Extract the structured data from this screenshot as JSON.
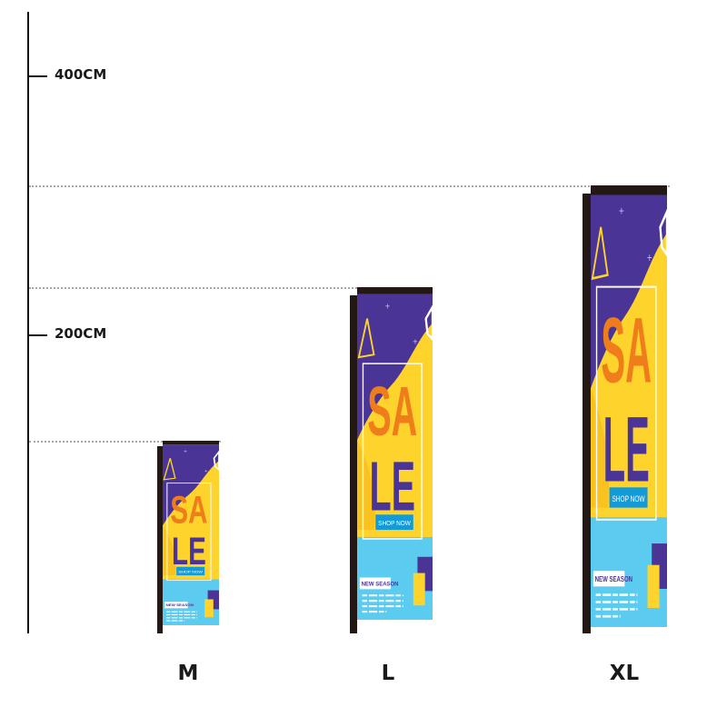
{
  "scale": {
    "ticks": [
      {
        "label": "400CM",
        "value_cm": 400
      },
      {
        "label": "200CM",
        "value_cm": 200
      }
    ]
  },
  "banners": [
    {
      "size": "M",
      "heading_top": "SA",
      "heading_bottom": "LE",
      "cta": "SHOP NOW",
      "tag": "NEW SEASON"
    },
    {
      "size": "L",
      "heading_top": "SA",
      "heading_bottom": "LE",
      "cta": "SHOP NOW",
      "tag": "NEW SEASON"
    },
    {
      "size": "XL",
      "heading_top": "SA",
      "heading_bottom": "LE",
      "cta": "SHOP NOW",
      "tag": "NEW SEASON"
    }
  ],
  "colors": {
    "purple": "#4a3596",
    "yellow": "#fed32c",
    "orange": "#ef7d1b",
    "sky": "#5ccbf0",
    "blue": "#129bd8",
    "dark": "#231814"
  }
}
